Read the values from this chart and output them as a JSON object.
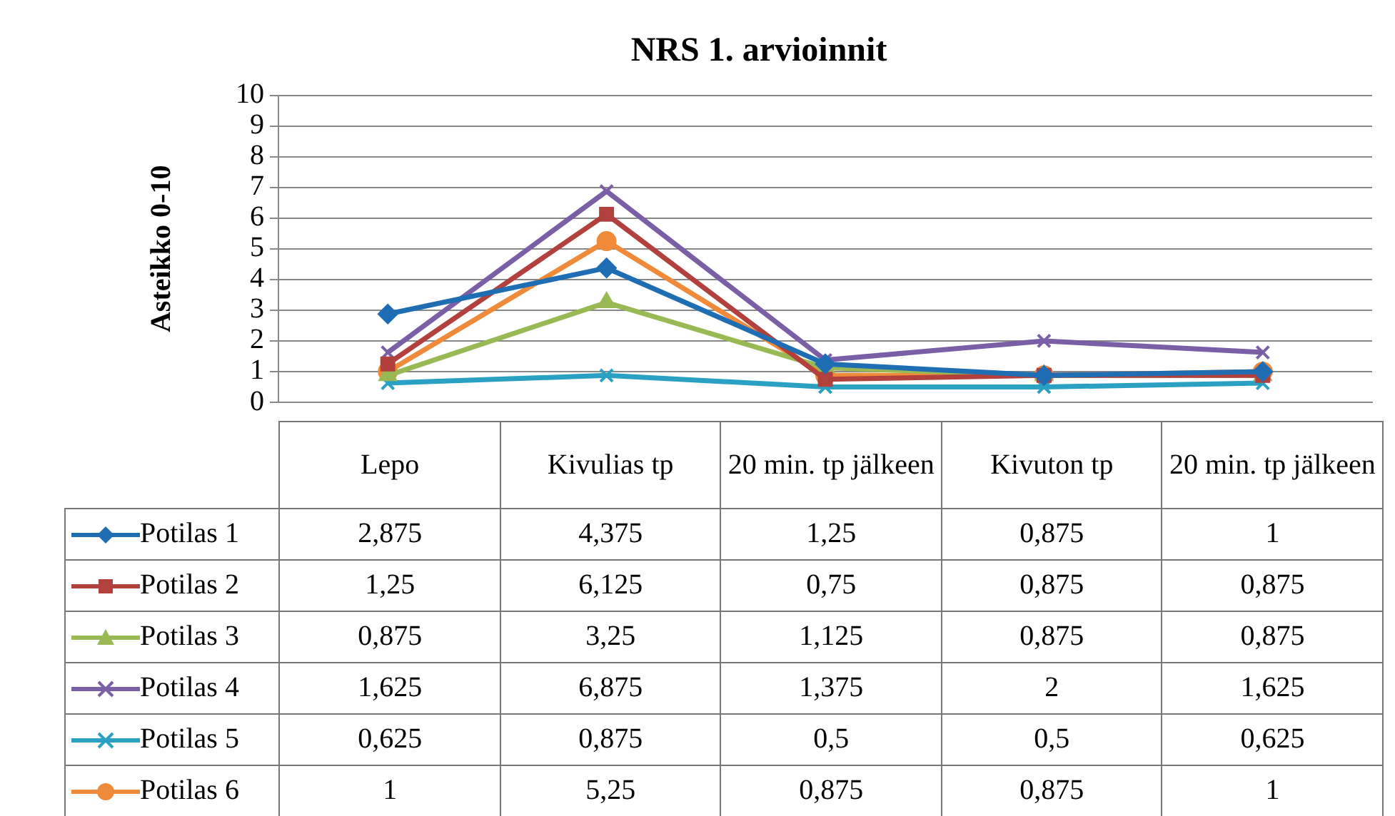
{
  "chart_data": {
    "type": "line",
    "title": "NRS 1. arvioinnit",
    "ylabel": "Asteikko 0-10",
    "categories": [
      "Lepo",
      "Kivulias tp",
      "20 min. tp jälkeen",
      "Kivuton tp",
      "20 min. tp jälkeen"
    ],
    "ylim": [
      0,
      10
    ],
    "yticks": [
      0,
      1,
      2,
      3,
      4,
      5,
      6,
      7,
      8,
      9,
      10
    ],
    "grid": "y",
    "legend": "bottom",
    "series": [
      {
        "name": "Potilas 1",
        "color": "#1f6db3",
        "marker": "diamond",
        "values": [
          2.875,
          4.375,
          1.25,
          0.875,
          1
        ],
        "value_labels": [
          "2,875",
          "4,375",
          "1,25",
          "0,875",
          "1"
        ]
      },
      {
        "name": "Potilas 2",
        "color": "#b2403c",
        "marker": "square",
        "values": [
          1.25,
          6.125,
          0.75,
          0.875,
          0.875
        ],
        "value_labels": [
          "1,25",
          "6,125",
          "0,75",
          "0,875",
          "0,875"
        ]
      },
      {
        "name": "Potilas 3",
        "color": "#98b954",
        "marker": "triangle",
        "values": [
          0.875,
          3.25,
          1.125,
          0.875,
          0.875
        ],
        "value_labels": [
          "0,875",
          "3,25",
          "1,125",
          "0,875",
          "0,875"
        ]
      },
      {
        "name": "Potilas 4",
        "color": "#7a5ea6",
        "marker": "cross",
        "values": [
          1.625,
          6.875,
          1.375,
          2,
          1.625
        ],
        "value_labels": [
          "1,625",
          "6,875",
          "1,375",
          "2",
          "1,625"
        ]
      },
      {
        "name": "Potilas 5",
        "color": "#2aa1c2",
        "marker": "cross",
        "values": [
          0.625,
          0.875,
          0.5,
          0.5,
          0.625
        ],
        "value_labels": [
          "0,625",
          "0,875",
          "0,5",
          "0,5",
          "0,625"
        ]
      },
      {
        "name": "Potilas 6",
        "color": "#ef8a3a",
        "marker": "circle",
        "values": [
          1,
          5.25,
          0.875,
          0.875,
          1
        ],
        "value_labels": [
          "1",
          "5,25",
          "0,875",
          "0,875",
          "1"
        ]
      }
    ]
  }
}
